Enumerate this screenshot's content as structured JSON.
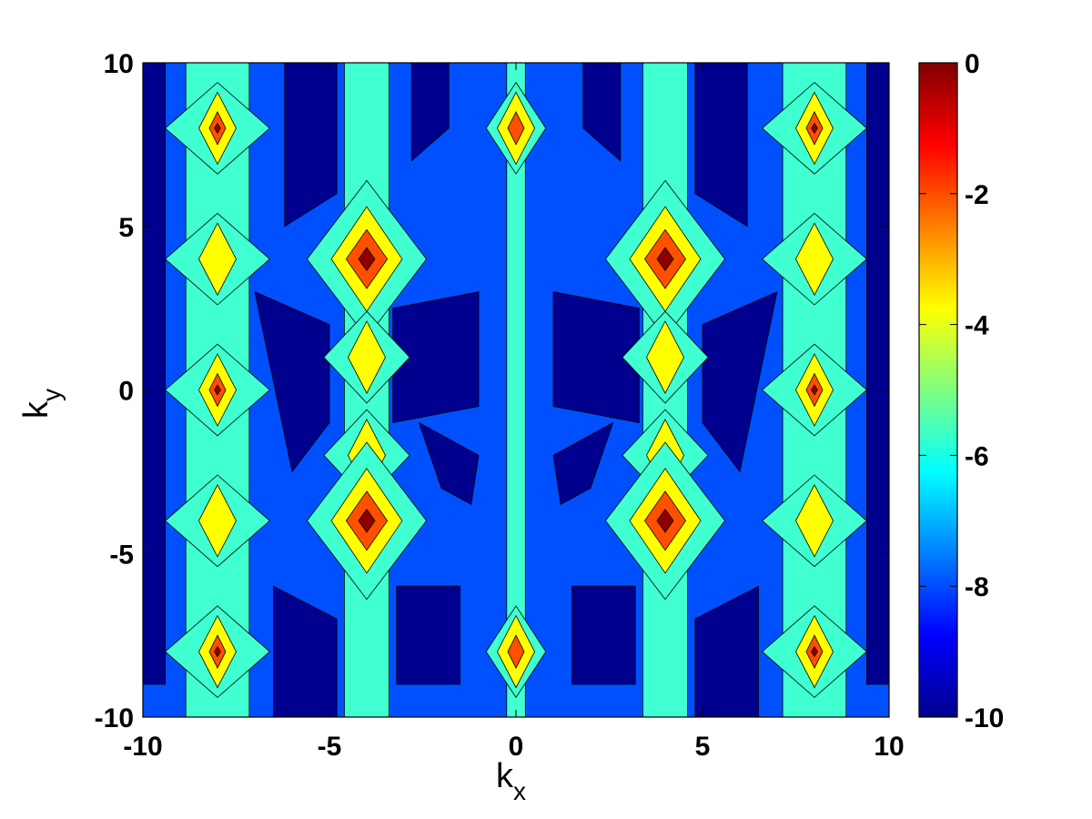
{
  "chart_data": {
    "type": "heatmap",
    "subtype": "filled-contour",
    "title": "",
    "xlabel": {
      "base": "k",
      "subscript": "x"
    },
    "ylabel": {
      "base": "k",
      "subscript": "y"
    },
    "xlim": [
      -10,
      10
    ],
    "ylim": [
      -10,
      10
    ],
    "x_ticks": [
      "-10",
      "-5",
      "0",
      "5",
      "10"
    ],
    "y_ticks": [
      "-10",
      "-5",
      "0",
      "5",
      "10"
    ],
    "x_tick_values": [
      -10,
      -5,
      0,
      5,
      10
    ],
    "y_tick_values": [
      -10,
      -5,
      0,
      5,
      10
    ],
    "colorbar": {
      "range": [
        -10,
        0
      ],
      "ticks": [
        "0",
        "-2",
        "-4",
        "-6",
        "-8",
        "-10"
      ],
      "tick_values": [
        0,
        -2,
        -4,
        -6,
        -8,
        -10
      ],
      "colormap": "jet"
    },
    "contour_levels": [
      -10,
      -8,
      -6,
      -4,
      -2,
      -1
    ],
    "level_colors": [
      "#00008f",
      "#0050ff",
      "#40ffd0",
      "#ffff00",
      "#ff5000",
      "#8f0000"
    ],
    "background_level": -8,
    "columns": [
      {
        "x": -8,
        "kind": "outer",
        "peaks": [
          {
            "y": 8,
            "value": -1
          },
          {
            "y": 4,
            "value": -4
          },
          {
            "y": 0,
            "value": -1
          },
          {
            "y": -4,
            "value": -4
          },
          {
            "y": -8,
            "value": -1
          }
        ]
      },
      {
        "x": -4,
        "kind": "mid",
        "peaks": [
          {
            "y": 4,
            "value": -1
          },
          {
            "y": 1,
            "value": -4
          },
          {
            "y": -2,
            "value": -4
          },
          {
            "y": -4,
            "value": -1
          }
        ]
      },
      {
        "x": 0,
        "kind": "center",
        "peaks": [
          {
            "y": 8,
            "value": -2
          },
          {
            "y": -8,
            "value": -2
          }
        ]
      },
      {
        "x": 4,
        "kind": "mid",
        "peaks": [
          {
            "y": 4,
            "value": -1
          },
          {
            "y": 1,
            "value": -4
          },
          {
            "y": -2,
            "value": -4
          },
          {
            "y": -4,
            "value": -1
          }
        ]
      },
      {
        "x": 8,
        "kind": "outer",
        "peaks": [
          {
            "y": 8,
            "value": -1
          },
          {
            "y": 4,
            "value": -4
          },
          {
            "y": 0,
            "value": -1
          },
          {
            "y": -4,
            "value": -4
          },
          {
            "y": -8,
            "value": -1
          }
        ]
      }
    ],
    "low_regions": [
      {
        "x": [
          -9.4,
          -9.4,
          -10,
          -10
        ],
        "y": [
          10,
          -9,
          -9,
          10
        ]
      },
      {
        "x": [
          9.4,
          9.4,
          10,
          10
        ],
        "y": [
          10,
          -9,
          -9,
          10
        ]
      },
      {
        "x": [
          -6.2,
          -4.8,
          -4.8,
          -6.2
        ],
        "y": [
          10,
          10,
          6,
          5
        ]
      },
      {
        "x": [
          6.2,
          4.8,
          4.8,
          6.2
        ],
        "y": [
          10,
          10,
          6,
          5
        ]
      },
      {
        "x": [
          -2.8,
          -1.8,
          -1.8,
          -2.8
        ],
        "y": [
          10,
          10,
          8,
          7
        ]
      },
      {
        "x": [
          2.8,
          1.8,
          1.8,
          2.8
        ],
        "y": [
          10,
          10,
          8,
          7
        ]
      },
      {
        "x": [
          -7.0,
          -5.0,
          -5.0,
          -6.0
        ],
        "y": [
          3,
          2,
          -1,
          -2.5
        ]
      },
      {
        "x": [
          7.0,
          5.0,
          5.0,
          6.0
        ],
        "y": [
          3,
          2,
          -1,
          -2.5
        ]
      },
      {
        "x": [
          -3.3,
          -1.0,
          -1.0,
          -3.3
        ],
        "y": [
          2.5,
          3.0,
          -0.5,
          -1.0
        ]
      },
      {
        "x": [
          3.3,
          1.0,
          1.0,
          3.3
        ],
        "y": [
          2.5,
          3.0,
          -0.5,
          -1.0
        ]
      },
      {
        "x": [
          -2.6,
          -1.0,
          -1.2,
          -2.0
        ],
        "y": [
          -1,
          -2,
          -3.5,
          -3
        ]
      },
      {
        "x": [
          2.6,
          1.0,
          1.2,
          2.0
        ],
        "y": [
          -1,
          -2,
          -3.5,
          -3
        ]
      },
      {
        "x": [
          -6.5,
          -4.8,
          -4.8,
          -6.5
        ],
        "y": [
          -6,
          -7,
          -10,
          -10
        ]
      },
      {
        "x": [
          6.5,
          4.8,
          4.8,
          6.5
        ],
        "y": [
          -6,
          -7,
          -10,
          -10
        ]
      },
      {
        "x": [
          -3.2,
          -1.5,
          -1.5,
          -3.2
        ],
        "y": [
          -6,
          -6,
          -9,
          -9
        ]
      },
      {
        "x": [
          3.2,
          1.5,
          1.5,
          3.2
        ],
        "y": [
          -6,
          -6,
          -9,
          -9
        ]
      }
    ]
  }
}
